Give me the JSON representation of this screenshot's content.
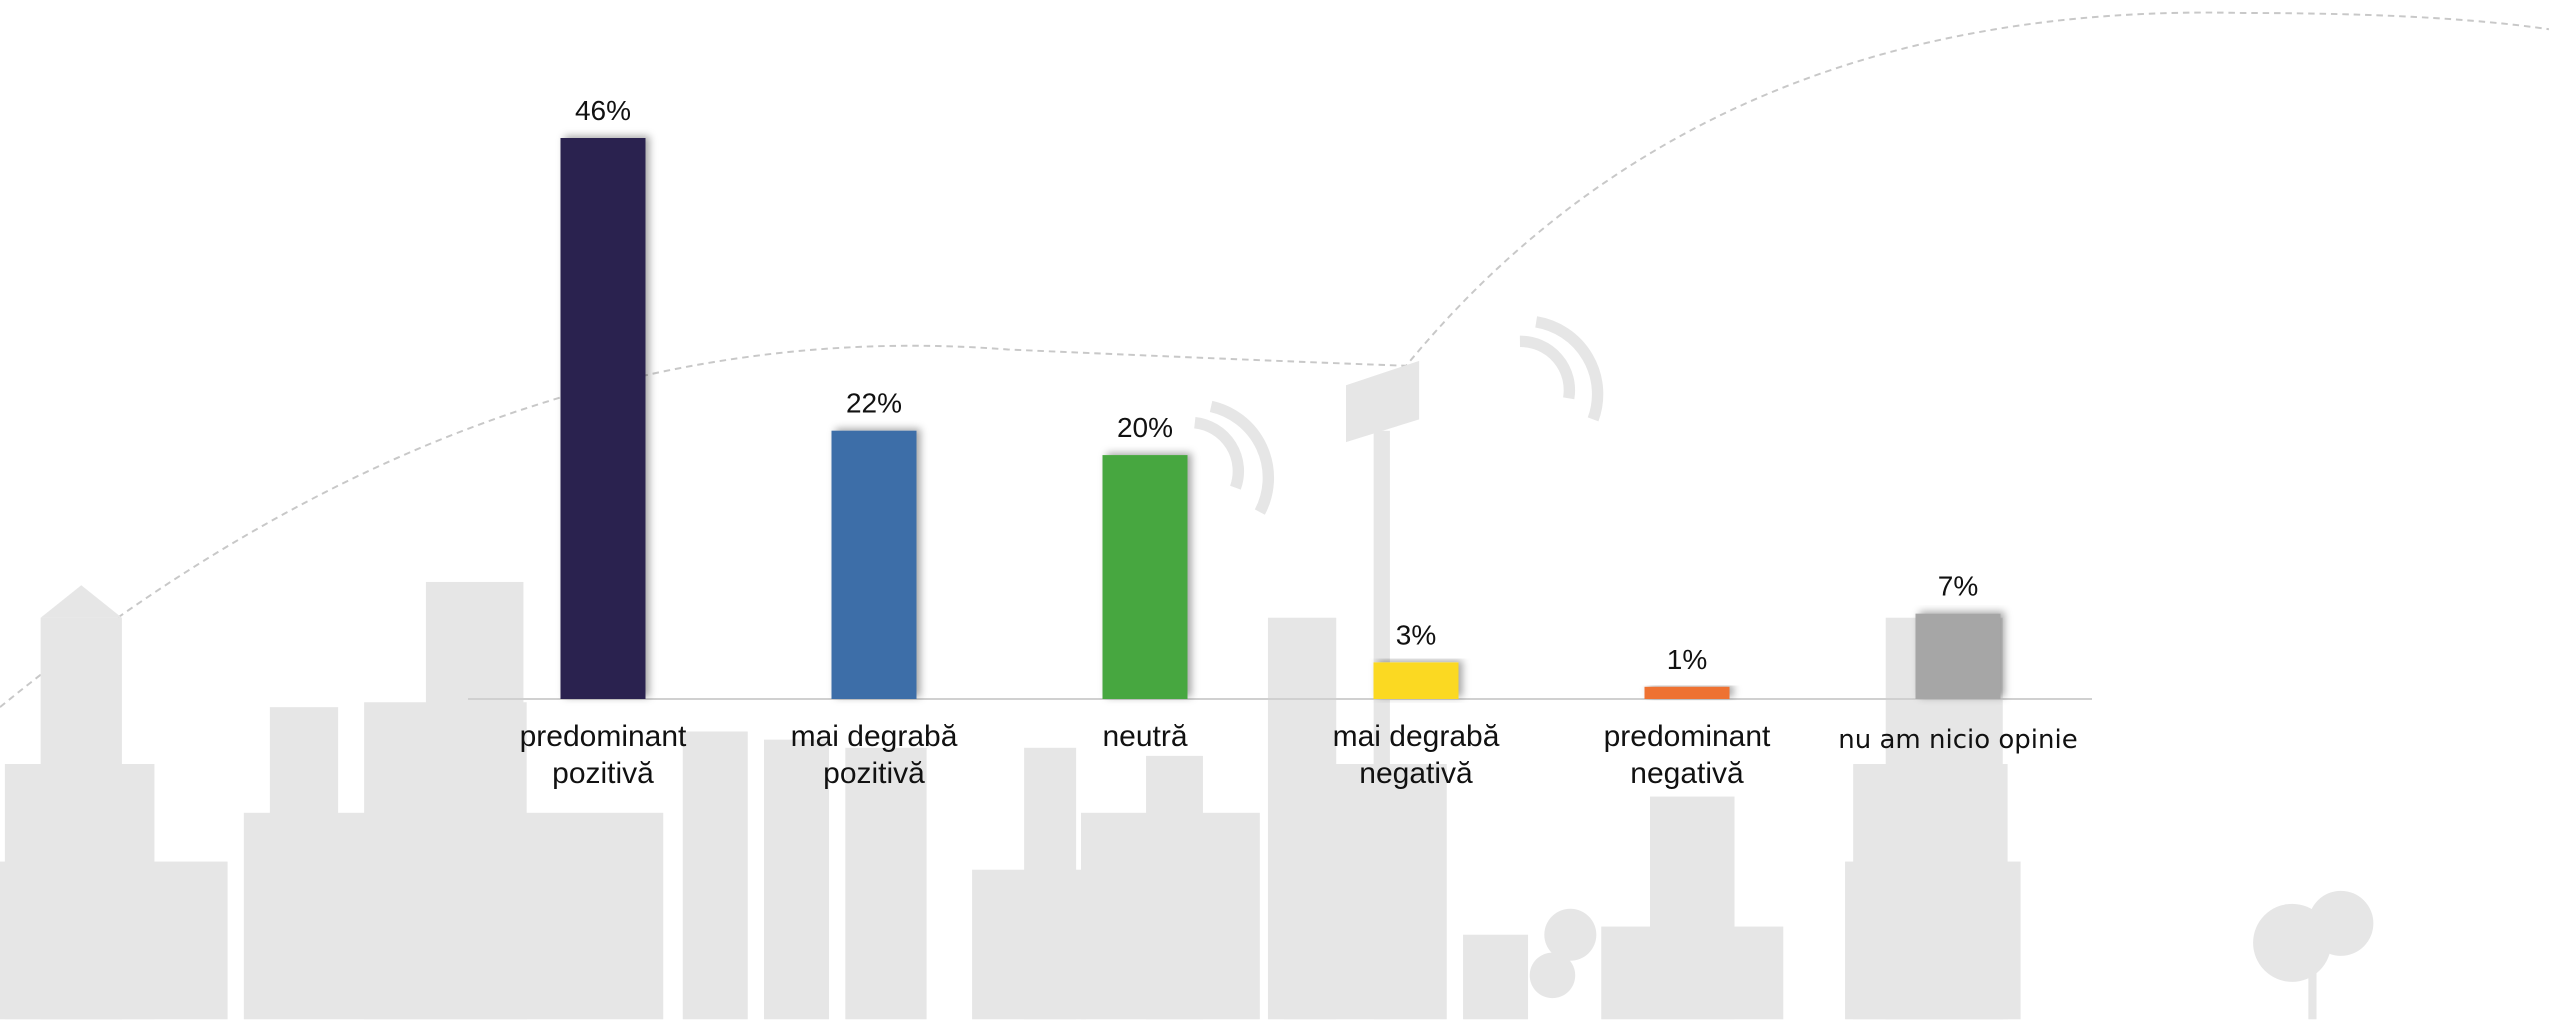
{
  "chart_data": {
    "type": "bar",
    "categories": [
      "predominant pozitivă",
      "mai degrabă pozitivă",
      "neutră",
      "mai degrabă negativă",
      "predominant negativă",
      "nu am nicio opinie"
    ],
    "values": [
      46,
      22,
      20,
      3,
      1,
      7
    ],
    "value_labels": [
      "46%",
      "22%",
      "20%",
      "3%",
      "1%",
      "7%"
    ],
    "colors": [
      "#2b2450",
      "#3d6ea8",
      "#46a73f",
      "#fbd920",
      "#ee7230",
      "#a6a6a6"
    ]
  }
}
